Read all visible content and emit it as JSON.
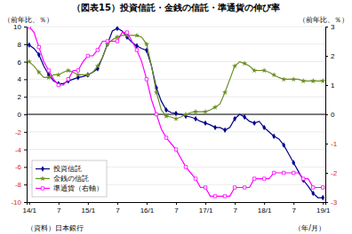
{
  "chart_data": {
    "type": "line",
    "title": "（図表15）投資信託・金銭の信託・準通貨の伸び率",
    "ylabel": "（前年比、％）",
    "y2label": "（前年比、％）",
    "xlabel": "（年/月）",
    "annotations": [
      "（資料）日本銀行"
    ],
    "categories": [
      "14/1",
      null,
      null,
      null,
      null,
      null,
      "7",
      null,
      null,
      null,
      null,
      null,
      "15/1",
      null,
      null,
      null,
      null,
      null,
      "7",
      null,
      null,
      null,
      null,
      null,
      "16/1",
      null,
      null,
      null,
      null,
      null,
      "7",
      null,
      null,
      null,
      null,
      null,
      "17/1",
      null,
      null,
      null,
      null,
      null,
      "7",
      null,
      null,
      null,
      null,
      null,
      "18/1",
      null,
      null,
      null,
      null,
      null,
      "7",
      null,
      null,
      null,
      null,
      null,
      "19/1"
    ],
    "ylim": [
      -10,
      10
    ],
    "yticks": [
      -10,
      -8,
      -6,
      -4,
      -2,
      0,
      2,
      4,
      6,
      8,
      10
    ],
    "y2lim": [
      -3,
      3
    ],
    "y2ticks": [
      -3,
      -2,
      -1,
      0,
      1,
      2,
      3
    ],
    "grid": true,
    "legend": "lower left",
    "series": [
      {
        "name": "投資信託",
        "color": "#00008B",
        "marker": "diamond",
        "values": [
          7.9,
          7.5,
          6.8,
          5.5,
          4.5,
          3.8,
          3.5,
          3.5,
          3.8,
          4.0,
          4.2,
          4.3,
          4.5,
          4.8,
          5.2,
          6.5,
          8.0,
          9.5,
          9.8,
          9.5,
          8.8,
          8.2,
          7.8,
          7.5,
          7.3,
          5.5,
          3.0,
          1.5,
          0.5,
          0.2,
          0.1,
          0.0,
          -0.2,
          -0.3,
          -0.5,
          -0.8,
          -1.0,
          -1.2,
          -1.5,
          -1.5,
          -1.8,
          -1.5,
          -0.5,
          0.0,
          -0.3,
          -0.8,
          -1.0,
          -0.8,
          -1.5,
          -2.0,
          -2.5,
          -2.8,
          -3.5,
          -4.5,
          -5.5,
          -6.5,
          -7.5,
          -8.2,
          -9.0,
          -9.5,
          -9.5
        ]
      },
      {
        "name": "金銭の信託",
        "color": "#6B8E23",
        "marker": "star",
        "values": [
          6.0,
          5.5,
          4.8,
          4.2,
          4.2,
          4.5,
          4.5,
          4.8,
          5.0,
          4.8,
          4.5,
          4.5,
          4.5,
          4.8,
          5.5,
          6.5,
          8.0,
          8.5,
          8.8,
          9.0,
          9.0,
          9.0,
          9.0,
          8.8,
          8.0,
          5.5,
          2.5,
          0.5,
          -0.2,
          -0.3,
          -0.5,
          -0.3,
          0.0,
          0.2,
          0.3,
          0.3,
          0.3,
          0.5,
          0.8,
          1.2,
          2.5,
          4.0,
          5.5,
          6.0,
          5.8,
          5.5,
          5.0,
          5.0,
          5.0,
          4.8,
          4.5,
          4.2,
          4.0,
          4.0,
          4.0,
          4.0,
          3.8,
          3.8,
          3.8,
          3.8,
          3.8
        ]
      },
      {
        "name": "準通貨（右軸）",
        "color": "#FF00FF",
        "marker": "square",
        "axis": "y2",
        "values": [
          3.0,
          2.8,
          2.3,
          1.8,
          1.5,
          1.2,
          1.0,
          1.0,
          1.2,
          1.5,
          1.5,
          1.8,
          2.0,
          2.0,
          2.2,
          2.5,
          2.5,
          2.5,
          2.5,
          2.8,
          2.8,
          2.5,
          2.2,
          1.8,
          1.2,
          0.5,
          0.0,
          -0.5,
          -0.8,
          -1.0,
          -1.2,
          -1.5,
          -1.8,
          -2.0,
          -2.2,
          -2.5,
          -2.5,
          -2.8,
          -2.8,
          -2.8,
          -2.8,
          -2.8,
          -2.5,
          -2.5,
          -2.5,
          -2.5,
          -2.2,
          -2.2,
          -2.2,
          -2.2,
          -2.0,
          -2.0,
          -2.0,
          -2.0,
          -2.0,
          -2.0,
          -2.2,
          -2.2,
          -2.5,
          -2.5,
          -2.5
        ]
      }
    ]
  }
}
